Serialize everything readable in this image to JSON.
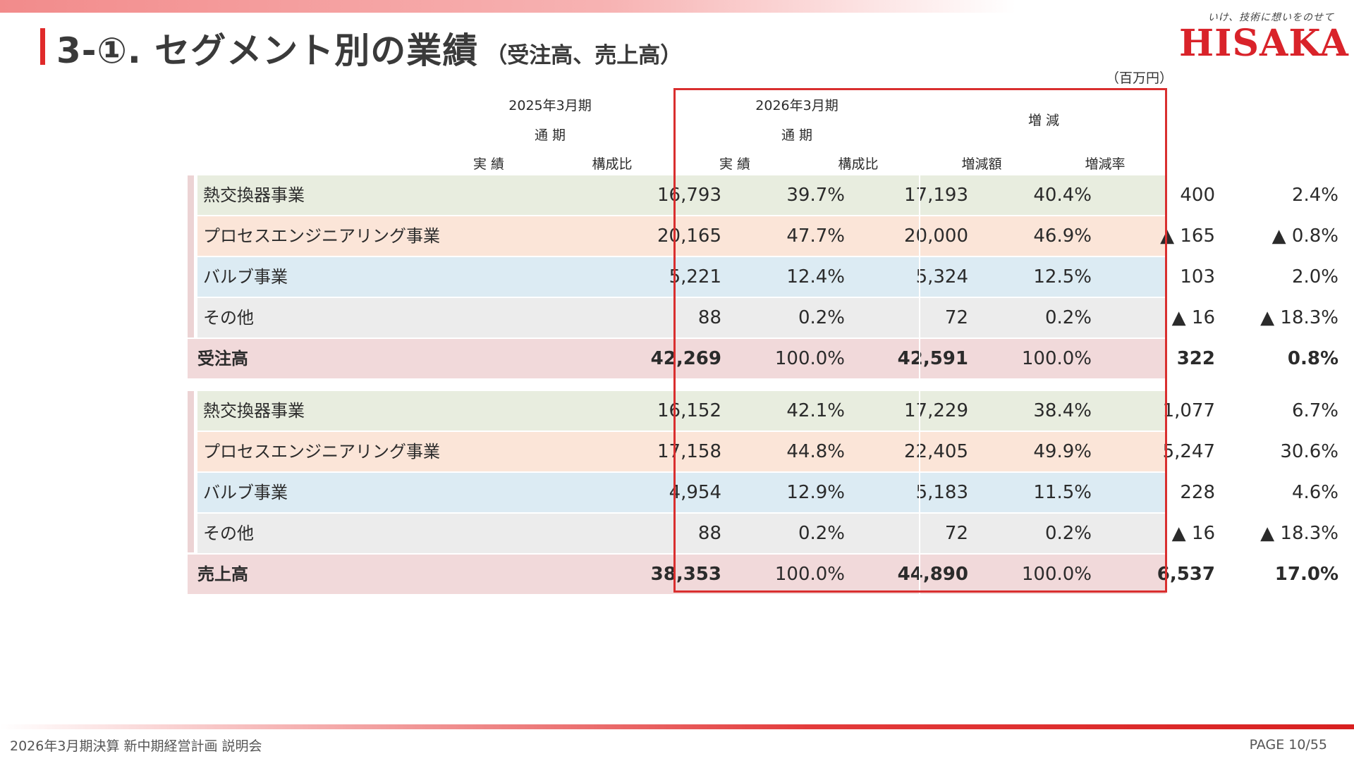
{
  "title": {
    "main": "3-①. セグメント別の業績",
    "sub": "（受注高、売上高）"
  },
  "logo": {
    "tagline": "いけ、技術に想いをのせて",
    "wordmark": "HISAKA"
  },
  "unit": "（百万円）",
  "header": {
    "period_prev": "2025年3月期",
    "period_curr": "2026年3月期",
    "full_year": "通 期",
    "change": "増 減",
    "actual": "実 績",
    "ratio": "構成比",
    "change_amount": "増減額",
    "change_rate": "増減率"
  },
  "colors": {
    "heat_exchanger": "#e8eddf",
    "process_engineering": "#fbe5d8",
    "valve": "#dcebf3",
    "other": "#ececec",
    "total": "#f1d9da",
    "accent": "#d92f2f",
    "section_bar": "#ecd3d4"
  },
  "orders": {
    "rows": [
      {
        "label": "熱交換器事業",
        "prev_actual": "16,793",
        "prev_ratio": "39.7%",
        "curr_actual": "17,193",
        "curr_ratio": "40.4%",
        "chg_amount": "400",
        "chg_rate": "2.4%"
      },
      {
        "label": "プロセスエンジニアリング事業",
        "prev_actual": "20,165",
        "prev_ratio": "47.7%",
        "curr_actual": "20,000",
        "curr_ratio": "46.9%",
        "chg_amount": "▲ 165",
        "chg_rate": "▲ 0.8%"
      },
      {
        "label": "バルブ事業",
        "prev_actual": "5,221",
        "prev_ratio": "12.4%",
        "curr_actual": "5,324",
        "curr_ratio": "12.5%",
        "chg_amount": "103",
        "chg_rate": "2.0%"
      },
      {
        "label": "その他",
        "prev_actual": "88",
        "prev_ratio": "0.2%",
        "curr_actual": "72",
        "curr_ratio": "0.2%",
        "chg_amount": "▲ 16",
        "chg_rate": "▲ 18.3%"
      }
    ],
    "total": {
      "label": "受注高",
      "prev_actual": "42,269",
      "prev_ratio": "100.0%",
      "curr_actual": "42,591",
      "curr_ratio": "100.0%",
      "chg_amount": "322",
      "chg_rate": "0.8%"
    }
  },
  "sales": {
    "rows": [
      {
        "label": "熱交換器事業",
        "prev_actual": "16,152",
        "prev_ratio": "42.1%",
        "curr_actual": "17,229",
        "curr_ratio": "38.4%",
        "chg_amount": "1,077",
        "chg_rate": "6.7%"
      },
      {
        "label": "プロセスエンジニアリング事業",
        "prev_actual": "17,158",
        "prev_ratio": "44.8%",
        "curr_actual": "22,405",
        "curr_ratio": "49.9%",
        "chg_amount": "5,247",
        "chg_rate": "30.6%"
      },
      {
        "label": "バルブ事業",
        "prev_actual": "4,954",
        "prev_ratio": "12.9%",
        "curr_actual": "5,183",
        "curr_ratio": "11.5%",
        "chg_amount": "228",
        "chg_rate": "4.6%"
      },
      {
        "label": "その他",
        "prev_actual": "88",
        "prev_ratio": "0.2%",
        "curr_actual": "72",
        "curr_ratio": "0.2%",
        "chg_amount": "▲ 16",
        "chg_rate": "▲ 18.3%"
      }
    ],
    "total": {
      "label": "売上高",
      "prev_actual": "38,353",
      "prev_ratio": "100.0%",
      "curr_actual": "44,890",
      "curr_ratio": "100.0%",
      "chg_amount": "6,537",
      "chg_rate": "17.0%"
    }
  },
  "footer": {
    "left": "2026年3月期決算 新中期経営計画 説明会",
    "right": "PAGE 10/55"
  }
}
